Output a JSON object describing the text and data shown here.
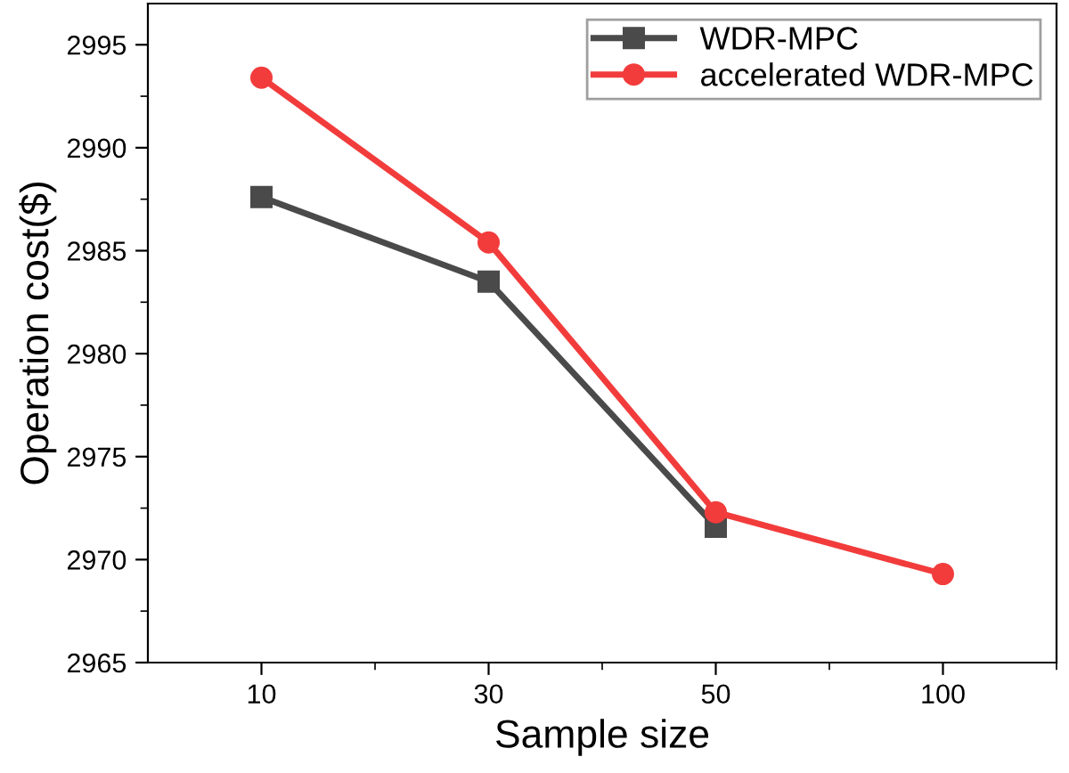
{
  "chart_data": {
    "type": "line",
    "xlabel": "Sample size",
    "ylabel": "Operation cost($)",
    "categories": [
      "10",
      "30",
      "50",
      "100"
    ],
    "series": [
      {
        "name": "WDR-MPC",
        "color": "#4a4a4a",
        "marker": "square",
        "values": [
          2987.6,
          2983.5,
          2971.6,
          null
        ]
      },
      {
        "name": "accelerated WDR-MPC",
        "color": "#f23c3c",
        "marker": "circle",
        "values": [
          2993.4,
          2985.4,
          2972.3,
          2969.3
        ]
      }
    ],
    "ylim": [
      2965,
      2997
    ],
    "yticks": [
      2965,
      2970,
      2975,
      2980,
      2985,
      2990,
      2995
    ],
    "grid": false,
    "legend": "top right",
    "line_style": "solid"
  }
}
